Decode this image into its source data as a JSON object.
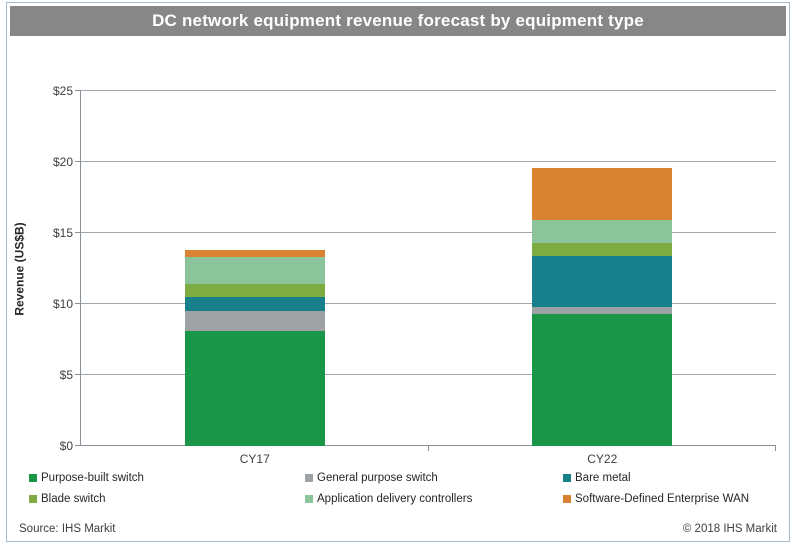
{
  "title": "DC network equipment revenue forecast by equipment type",
  "footer": {
    "source": "Source: IHS Markit",
    "copyright": "© 2018 IHS Markit"
  },
  "colors": {
    "title_bar_bg": "#878787",
    "title_text": "#ffffff",
    "frame_border": "#a8bacd",
    "gridline": "#a0a8b2",
    "axis_line": "#8a919b"
  },
  "chart_data": {
    "type": "bar",
    "stacked": true,
    "title": "DC network equipment revenue forecast by equipment type",
    "categories": [
      "CY17",
      "CY22"
    ],
    "series": [
      {
        "name": "Purpose-built switch",
        "color": "#1a9649",
        "values": [
          8.1,
          9.3
        ]
      },
      {
        "name": "General purpose switch",
        "color": "#9fa2a5",
        "values": [
          1.4,
          0.5
        ]
      },
      {
        "name": "Bare metal",
        "color": "#17808a",
        "values": [
          1.0,
          3.6
        ]
      },
      {
        "name": "Blade switch",
        "color": "#7fac42",
        "values": [
          0.9,
          0.9
        ]
      },
      {
        "name": "Application delivery controllers",
        "color": "#8bc49a",
        "values": [
          1.9,
          1.6
        ]
      },
      {
        "name": "Software-Defined Enterprise WAN",
        "color": "#d98232",
        "values": [
          0.5,
          3.7
        ]
      }
    ],
    "totals": [
      13.8,
      19.6
    ],
    "xlabel": "",
    "ylabel": "Revenue (US$B)",
    "ylim": [
      0,
      25
    ],
    "ytick_labels": [
      "$0",
      "$5",
      "$10",
      "$15",
      "$20",
      "$25"
    ],
    "ytick_values": [
      0,
      5,
      10,
      15,
      20,
      25
    ],
    "grid": "horizontal",
    "legend_position": "bottom",
    "source": "Source: IHS Markit",
    "copyright": "© 2018 IHS Markit"
  }
}
